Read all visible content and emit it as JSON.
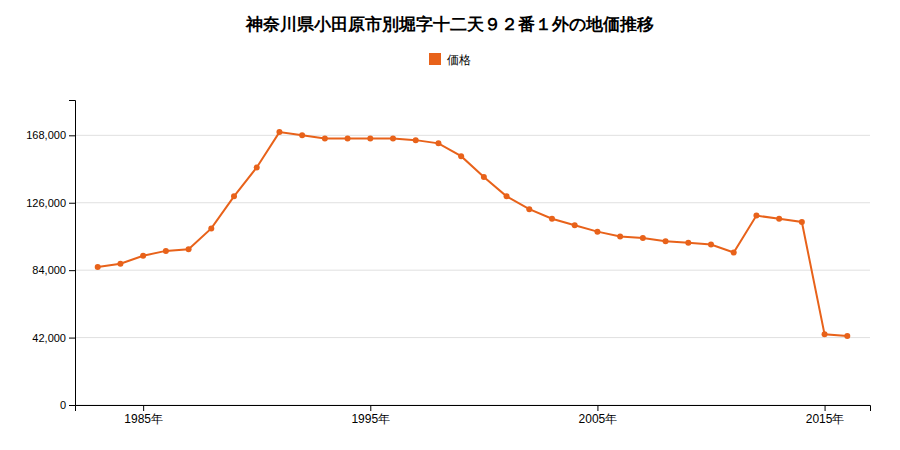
{
  "chart_data": {
    "type": "line",
    "title": "神奈川県小田原市別堀字十二天９２番１外の地価推移",
    "x": [
      1983,
      1984,
      1985,
      1986,
      1987,
      1988,
      1989,
      1990,
      1991,
      1992,
      1993,
      1994,
      1995,
      1996,
      1997,
      1998,
      1999,
      2000,
      2001,
      2002,
      2003,
      2004,
      2005,
      2006,
      2007,
      2008,
      2009,
      2010,
      2011,
      2012,
      2013,
      2014,
      2015,
      2016
    ],
    "series": [
      {
        "name": "価格",
        "color": "#e8621a",
        "marker": "circle",
        "values": [
          86000,
          88000,
          93000,
          96000,
          97000,
          110000,
          130000,
          148000,
          170000,
          168000,
          166000,
          166000,
          166000,
          166000,
          165000,
          163000,
          155000,
          142000,
          130000,
          122000,
          116000,
          112000,
          108000,
          105000,
          104000,
          102000,
          101000,
          100000,
          95000,
          118000,
          116000,
          114000,
          44000,
          43000
        ]
      }
    ],
    "xlim": [
      1982,
      2017
    ],
    "ylim": [
      0,
      190000
    ],
    "xticks": [
      {
        "value": 1985,
        "label": "1985年"
      },
      {
        "value": 1995,
        "label": "1995年"
      },
      {
        "value": 2005,
        "label": "2005年"
      },
      {
        "value": 2015,
        "label": "2015年"
      }
    ],
    "yticks": [
      0,
      {
        "value": 42000,
        "label": "42,000"
      },
      {
        "value": 84000,
        "label": "84,000"
      },
      {
        "value": 126000,
        "label": "126,000"
      },
      {
        "value": 168000,
        "label": "168,000"
      }
    ],
    "grid": true,
    "legend": "top"
  }
}
